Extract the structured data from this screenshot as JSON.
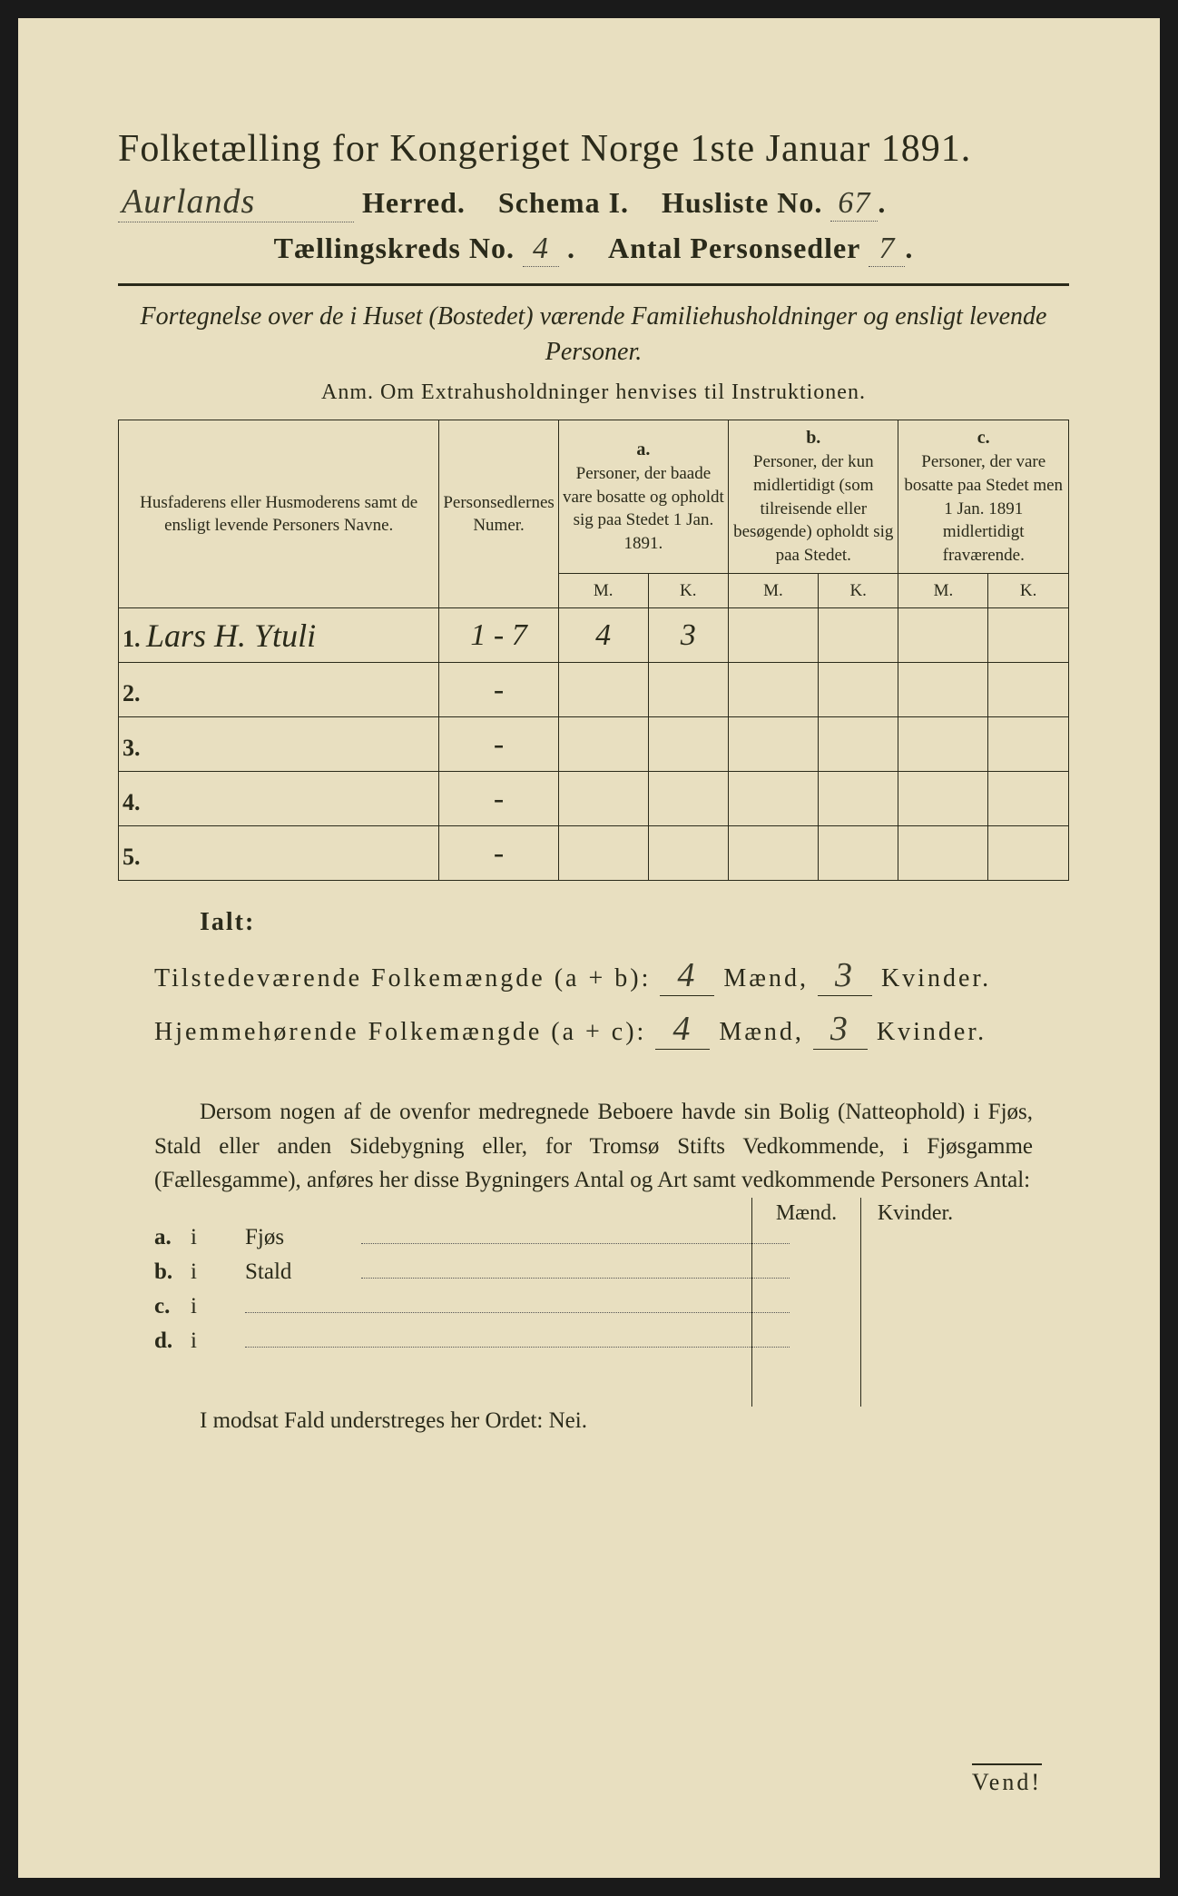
{
  "title": "Folketælling for Kongeriget Norge 1ste Januar 1891.",
  "header": {
    "herred_value": "Aurlands",
    "herred_label": "Herred.",
    "schema_label": "Schema I.",
    "husliste_label": "Husliste No.",
    "husliste_value": "67",
    "tellingskreds_label": "Tællingskreds No.",
    "tellingskreds_value": "4",
    "antal_label": "Antal Personsedler",
    "antal_value": "7"
  },
  "subtitle": "Fortegnelse over de i Huset (Bostedet) værende Familiehusholdninger og ensligt levende Personer.",
  "anm": "Anm.  Om Extrahusholdninger henvises til Instruktionen.",
  "columns": {
    "c1": "Husfaderens eller Husmoderens samt de ensligt levende Personers Navne.",
    "c2": "Personsedlernes Numer.",
    "a_label": "a.",
    "a_text": "Personer, der baade vare bosatte og opholdt sig paa Stedet 1 Jan. 1891.",
    "b_label": "b.",
    "b_text": "Personer, der kun midlertidigt (som tilreisende eller besøgende) opholdt sig paa Stedet.",
    "c_label": "c.",
    "c_text": "Personer, der vare bosatte paa Stedet men 1 Jan. 1891 midlertidigt fraværende.",
    "m": "M.",
    "k": "K."
  },
  "rows": [
    {
      "num": "1.",
      "name": "Lars H. Ytuli",
      "sedler": "1 - 7",
      "a_m": "4",
      "a_k": "3",
      "b_m": "",
      "b_k": "",
      "c_m": "",
      "c_k": ""
    },
    {
      "num": "2.",
      "name": "",
      "sedler": "-",
      "a_m": "",
      "a_k": "",
      "b_m": "",
      "b_k": "",
      "c_m": "",
      "c_k": ""
    },
    {
      "num": "3.",
      "name": "",
      "sedler": "-",
      "a_m": "",
      "a_k": "",
      "b_m": "",
      "b_k": "",
      "c_m": "",
      "c_k": ""
    },
    {
      "num": "4.",
      "name": "",
      "sedler": "-",
      "a_m": "",
      "a_k": "",
      "b_m": "",
      "b_k": "",
      "c_m": "",
      "c_k": ""
    },
    {
      "num": "5.",
      "name": "",
      "sedler": "-",
      "a_m": "",
      "a_k": "",
      "b_m": "",
      "b_k": "",
      "c_m": "",
      "c_k": ""
    }
  ],
  "totals": {
    "ialt": "Ialt:",
    "tilstede_label": "Tilstedeværende Folkemængde (a + b):",
    "hjemme_label": "Hjemmehørende Folkemængde (a + c):",
    "tilstede_m": "4",
    "tilstede_k": "3",
    "hjemme_m": "4",
    "hjemme_k": "3",
    "maend": "Mænd,",
    "kvinder": "Kvinder."
  },
  "paragraph": "Dersom nogen af de ovenfor medregnede Beboere havde sin Bolig (Natteophold) i Fjøs, Stald eller anden Sidebygning eller, for Tromsø Stifts Vedkommende, i Fjøsgamme (Fællesgamme), anføres her disse Bygningers Antal og Art samt vedkommende Personers Antal:",
  "buildings": {
    "maend": "Mænd.",
    "kvinder": "Kvinder.",
    "a": {
      "label": "a.",
      "i": "i",
      "name": "Fjøs"
    },
    "b": {
      "label": "b.",
      "i": "i",
      "name": "Stald"
    },
    "c": {
      "label": "c.",
      "i": "i",
      "name": ""
    },
    "d": {
      "label": "d.",
      "i": "i",
      "name": ""
    }
  },
  "final": "I modsat Fald understreges her Ordet: Nei.",
  "vend": "Vend!",
  "colors": {
    "paper": "#e8dfc0",
    "ink": "#2a2a1a",
    "background": "#1a1a1a"
  },
  "fonts": {
    "serif": "Times New Roman",
    "script": "Brush Script MT",
    "title_size": 42,
    "body_size": 25
  }
}
